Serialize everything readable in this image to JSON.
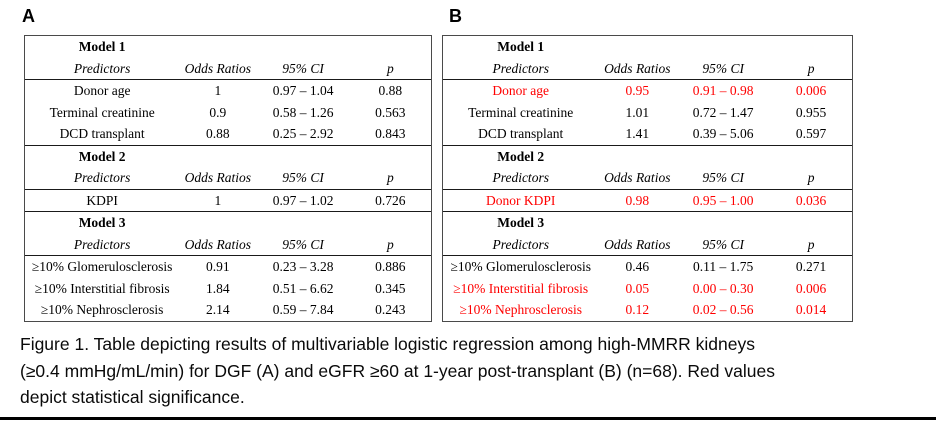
{
  "figure": {
    "panel_a_label": "A",
    "panel_b_label": "B",
    "caption_lines": [
      "Figure 1. Table depicting results of multivariable logistic regression among high-MMRR kidneys",
      "(≥0.4 mmHg/mL/min) for DGF (A) and eGFR ≥60 at 1-year post-transplant (B) (n=68). Red values",
      "depict statistical significance."
    ]
  },
  "colors": {
    "significant_text": "#FF0000",
    "normal_text": "#000000",
    "table_border": "#4a4a4a",
    "rule": "#000000"
  },
  "tables": [
    {
      "panel": "A",
      "models": [
        {
          "title": "Model 1",
          "columns": [
            "Predictors",
            "Odds Ratios",
            "95% CI",
            "p"
          ],
          "rows": [
            {
              "predictor": "Donor age",
              "odds_ratio": "1",
              "ci": "0.97 – 1.04",
              "p": "0.88",
              "significant": false
            },
            {
              "predictor": "Terminal creatinine",
              "odds_ratio": "0.9",
              "ci": "0.58 – 1.26",
              "p": "0.563",
              "significant": false
            },
            {
              "predictor": "DCD transplant",
              "odds_ratio": "0.88",
              "ci": "0.25 – 2.92",
              "p": "0.843",
              "significant": false
            }
          ]
        },
        {
          "title": "Model 2",
          "columns": [
            "Predictors",
            "Odds Ratios",
            "95% CI",
            "p"
          ],
          "rows": [
            {
              "predictor": "KDPI",
              "odds_ratio": "1",
              "ci": "0.97 – 1.02",
              "p": "0.726",
              "significant": false
            }
          ]
        },
        {
          "title": "Model 3",
          "columns": [
            "Predictors",
            "Odds Ratios",
            "95% CI",
            "p"
          ],
          "rows": [
            {
              "predictor": "≥10% Glomerulosclerosis",
              "odds_ratio": "0.91",
              "ci": "0.23 – 3.28",
              "p": "0.886",
              "significant": false
            },
            {
              "predictor": "≥10% Interstitial fibrosis",
              "odds_ratio": "1.84",
              "ci": "0.51 – 6.62",
              "p": "0.345",
              "significant": false
            },
            {
              "predictor": "≥10% Nephrosclerosis",
              "odds_ratio": "2.14",
              "ci": "0.59 – 7.84",
              "p": "0.243",
              "significant": false
            }
          ]
        }
      ]
    },
    {
      "panel": "B",
      "models": [
        {
          "title": "Model 1",
          "columns": [
            "Predictors",
            "Odds Ratios",
            "95% CI",
            "p"
          ],
          "rows": [
            {
              "predictor": "Donor age",
              "odds_ratio": "0.95",
              "ci": "0.91 – 0.98",
              "p": "0.006",
              "significant": true
            },
            {
              "predictor": "Terminal creatinine",
              "odds_ratio": "1.01",
              "ci": "0.72 – 1.47",
              "p": "0.955",
              "significant": false
            },
            {
              "predictor": "DCD transplant",
              "odds_ratio": "1.41",
              "ci": "0.39 – 5.06",
              "p": "0.597",
              "significant": false
            }
          ]
        },
        {
          "title": "Model 2",
          "columns": [
            "Predictors",
            "Odds Ratios",
            "95% CI",
            "p"
          ],
          "rows": [
            {
              "predictor": "Donor KDPI",
              "odds_ratio": "0.98",
              "ci": "0.95 – 1.00",
              "p": "0.036",
              "significant": true
            }
          ]
        },
        {
          "title": "Model 3",
          "columns": [
            "Predictors",
            "Odds Ratios",
            "95% CI",
            "p"
          ],
          "rows": [
            {
              "predictor": "≥10% Glomerulosclerosis",
              "odds_ratio": "0.46",
              "ci": "0.11 – 1.75",
              "p": "0.271",
              "significant": false
            },
            {
              "predictor": "≥10% Interstitial fibrosis",
              "odds_ratio": "0.05",
              "ci": "0.00 – 0.30",
              "p": "0.006",
              "significant": true
            },
            {
              "predictor": "≥10% Nephrosclerosis",
              "odds_ratio": "0.12",
              "ci": "0.02 – 0.56",
              "p": "0.014",
              "significant": true
            }
          ]
        }
      ]
    }
  ]
}
